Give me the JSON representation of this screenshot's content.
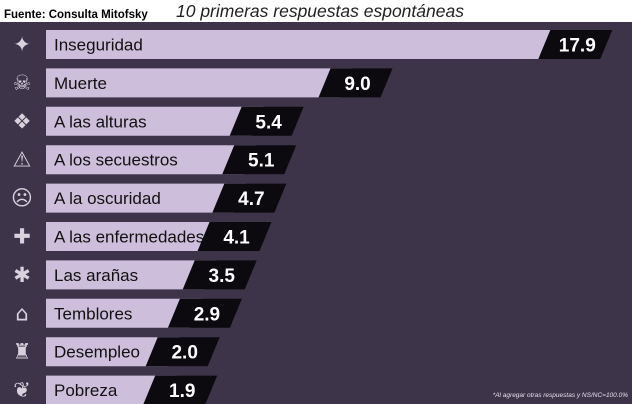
{
  "header": {
    "source": "Fuente: Consulta Mitofsky",
    "subtitle": "10 primeras respuestas espontáneas"
  },
  "footnote": "*Al agregar otras respuestas y NS/NC=100.0%",
  "colors": {
    "panel_bg": "#3d3449",
    "bar_fill": "#cdbfdb",
    "value_box": "#0c0a0f",
    "icon": "#d8d2de"
  },
  "chart_data": {
    "type": "bar",
    "orientation": "horizontal",
    "title": "",
    "xlabel": "",
    "ylabel": "",
    "grid": false,
    "categories": [
      "Inseguridad",
      "Muerte",
      "A las alturas",
      "A los secuestros",
      "A la oscuridad",
      "A las enfermedades",
      "Las arañas",
      "Temblores",
      "Desempleo",
      "Pobreza"
    ],
    "values": [
      17.9,
      9.0,
      5.4,
      5.1,
      4.7,
      4.1,
      3.5,
      2.9,
      2.0,
      1.9
    ],
    "value_labels": [
      "17.9",
      "9.0",
      "5.4",
      "5.1",
      "4.7",
      "4.1",
      "3.5",
      "2.9",
      "2.0",
      "1.9"
    ],
    "icons": [
      "gun-icon",
      "grim-reaper-icon",
      "heights-icon",
      "kidnapping-icon",
      "sad-face-icon",
      "hospital-bed-icon",
      "spider-icon",
      "earthquake-house-icon",
      "unemployment-icon",
      "poverty-plant-icon"
    ],
    "icon_glyphs": [
      "✦",
      "☠",
      "❖",
      "⚠",
      "☹",
      "✚",
      "✱",
      "⌂",
      "♜",
      "❦"
    ]
  }
}
